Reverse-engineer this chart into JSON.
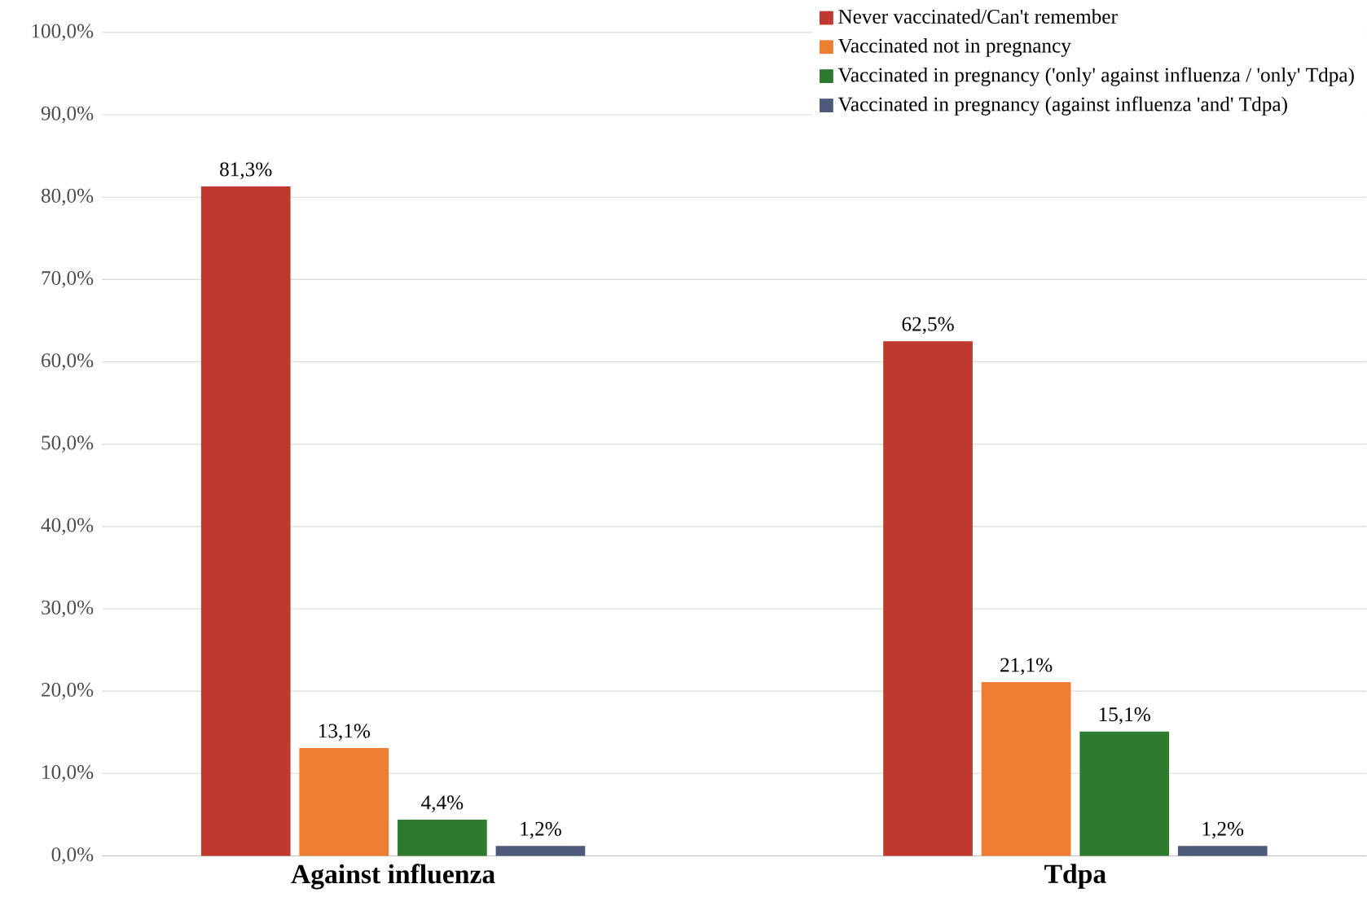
{
  "chart_data": {
    "type": "bar",
    "categories": [
      "Against influenza",
      "Tdpa"
    ],
    "series": [
      {
        "name": "Never vaccinated/Can't remember",
        "color": "#c0392f",
        "values": [
          81.3,
          62.5
        ],
        "value_labels": [
          "81,3%",
          "62,5%"
        ]
      },
      {
        "name": "Vaccinated not in pregnancy",
        "color": "#ed7d31",
        "values": [
          13.1,
          21.1
        ],
        "value_labels": [
          "13,1%",
          "21,1%"
        ]
      },
      {
        "name": "Vaccinated in pregnancy ('only' against influenza / 'only' Tdpa)",
        "color": "#2e7a2e",
        "values": [
          4.4,
          15.1
        ],
        "value_labels": [
          "4,4%",
          "15,1%"
        ]
      },
      {
        "name": "Vaccinated in pregnancy (against influenza 'and' Tdpa)",
        "color": "#4e5a7a",
        "values": [
          1.2,
          1.2
        ],
        "value_labels": [
          "1,2%",
          "1,2%"
        ]
      }
    ],
    "ylim": [
      0,
      100
    ],
    "yticks": [
      {
        "value": 0,
        "label": "0,0%"
      },
      {
        "value": 10,
        "label": "10,0%"
      },
      {
        "value": 20,
        "label": "20,0%"
      },
      {
        "value": 30,
        "label": "30,0%"
      },
      {
        "value": 40,
        "label": "40,0%"
      },
      {
        "value": 50,
        "label": "50,0%"
      },
      {
        "value": 60,
        "label": "60,0%"
      },
      {
        "value": 70,
        "label": "70,0%"
      },
      {
        "value": 80,
        "label": "80,0%"
      },
      {
        "value": 90,
        "label": "90,0%"
      },
      {
        "value": 100,
        "label": "100,0%"
      }
    ],
    "grid": "y",
    "legend": "top right"
  }
}
